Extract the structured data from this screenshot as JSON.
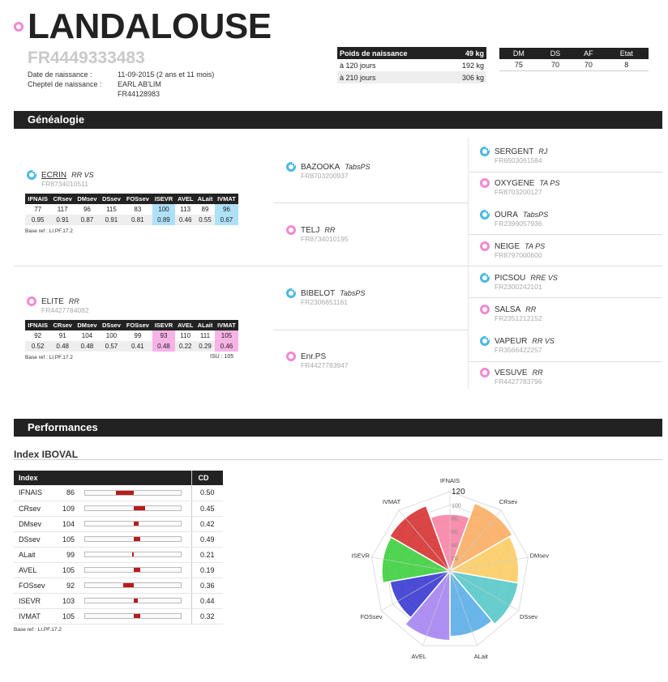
{
  "header": {
    "name": "LANDALOUSE",
    "reg_number": "FR4449333483",
    "birth_label": "Date de naissance :",
    "birth_value": "11-09-2015 (2 ans et 11 mois)",
    "herd_label": "Cheptel de naissance :",
    "herd_value": "EARL AB'LIM",
    "herd_code": "FR44128983"
  },
  "poids": {
    "rows": [
      {
        "label": "Poids de naissance",
        "value": "49 kg"
      },
      {
        "label": "à 120 jours",
        "value": "192 kg"
      },
      {
        "label": "à 210 jours",
        "value": "306 kg"
      }
    ]
  },
  "notes": {
    "headers": [
      "DM",
      "DS",
      "AF",
      "Etat"
    ],
    "values": [
      "75",
      "70",
      "70",
      "8"
    ]
  },
  "genealogie": {
    "title": "Généalogie",
    "sire": {
      "name": "ECRIN",
      "qual": "RR VS",
      "id": "FR8734010511"
    },
    "dam": {
      "name": "ELITE",
      "qual": "RR",
      "id": "FR4427784082"
    },
    "index_headers": [
      "IFNAIS",
      "CRsev",
      "DMsev",
      "DSsev",
      "FOSsev",
      "ISEVR",
      "AVEL",
      "ALait",
      "IVMAT"
    ],
    "sire_index": {
      "values": [
        "77",
        "117",
        "96",
        "115",
        "83",
        "100",
        "113",
        "89",
        "96"
      ],
      "cd": [
        "0.95",
        "0.91",
        "0.87",
        "0.91",
        "0.81",
        "0.89",
        "0.46",
        "0.55",
        "0.67"
      ]
    },
    "dam_index": {
      "values": [
        "92",
        "91",
        "104",
        "100",
        "99",
        "93",
        "110",
        "111",
        "105"
      ],
      "cd": [
        "0.52",
        "0.48",
        "0.48",
        "0.57",
        "0.41",
        "0.48",
        "0.22",
        "0.29",
        "0.46"
      ]
    },
    "base_ref": "Base ref : LI.PF.17.2",
    "isu": "ISU : 105",
    "grandparents": [
      {
        "name": "BAZOOKA",
        "qual": "TabsPS",
        "id": "FR8703200937",
        "sex": "m"
      },
      {
        "name": "TELJ",
        "qual": "RR",
        "id": "FR8734010195",
        "sex": "f"
      },
      {
        "name": "BIBELOT",
        "qual": "TabsPS",
        "id": "FR2306651161",
        "sex": "m"
      },
      {
        "name": "Enr.PS",
        "qual": "",
        "id": "FR4427783947",
        "sex": "f"
      }
    ],
    "great_grandparents": [
      {
        "name": "SERGENT",
        "qual": "RJ",
        "id": "FR6503061584",
        "sex": "m"
      },
      {
        "name": "OXYGENE",
        "qual": "TA PS",
        "id": "FR8703200127",
        "sex": "f"
      },
      {
        "name": "OURA",
        "qual": "TabsPS",
        "id": "FR2399057936",
        "sex": "m"
      },
      {
        "name": "NEIGE",
        "qual": "TA PS",
        "id": "FR8797000600",
        "sex": "f"
      },
      {
        "name": "PICSOU",
        "qual": "RRE VS",
        "id": "FR2300242101",
        "sex": "m"
      },
      {
        "name": "SALSA",
        "qual": "RR",
        "id": "FR2351212152",
        "sex": "f"
      },
      {
        "name": "VAPEUR",
        "qual": "RR VS",
        "id": "FR3566422257",
        "sex": "m"
      },
      {
        "name": "VESUVE",
        "qual": "RR",
        "id": "FR4427783796",
        "sex": "f"
      }
    ]
  },
  "performances": {
    "title": "Performances",
    "subtitle": "Index IBOVAL",
    "col_index": "Index",
    "col_cd": "CD",
    "rows": [
      {
        "name": "IFNAIS",
        "value": 86,
        "cd": "0.50"
      },
      {
        "name": "CRsev",
        "value": 109,
        "cd": "0.45"
      },
      {
        "name": "DMsev",
        "value": 104,
        "cd": "0.42"
      },
      {
        "name": "DSsev",
        "value": 105,
        "cd": "0.49"
      },
      {
        "name": "ALait",
        "value": 99,
        "cd": "0.21"
      },
      {
        "name": "AVEL",
        "value": 105,
        "cd": "0.19"
      },
      {
        "name": "FOSsev",
        "value": 92,
        "cd": "0.36"
      },
      {
        "name": "ISEVR",
        "value": 103,
        "cd": "0.44"
      },
      {
        "name": "IVMAT",
        "value": 105,
        "cd": "0.32"
      }
    ],
    "base_ref": "Base ref : LI.PF.17.2"
  },
  "chart_data": {
    "type": "polar-area",
    "categories": [
      "IFNAIS",
      "CRsev",
      "DMsev",
      "DSsev",
      "ALait",
      "AVEL",
      "FOSsev",
      "ISEVR",
      "IVMAT"
    ],
    "values": [
      86,
      109,
      104,
      105,
      99,
      105,
      92,
      103,
      105
    ],
    "rlim": [
      0,
      120
    ],
    "ticks": [
      20,
      40,
      60,
      80,
      100,
      120
    ],
    "colors": [
      "#f77ba0",
      "#f5a442",
      "#fbbf30",
      "#fbcf5c",
      "#4bbfbf",
      "#4aa3e6",
      "#9b7ef0",
      "#2222cc",
      "#2ecc2e",
      "#cc1a1a"
    ]
  }
}
